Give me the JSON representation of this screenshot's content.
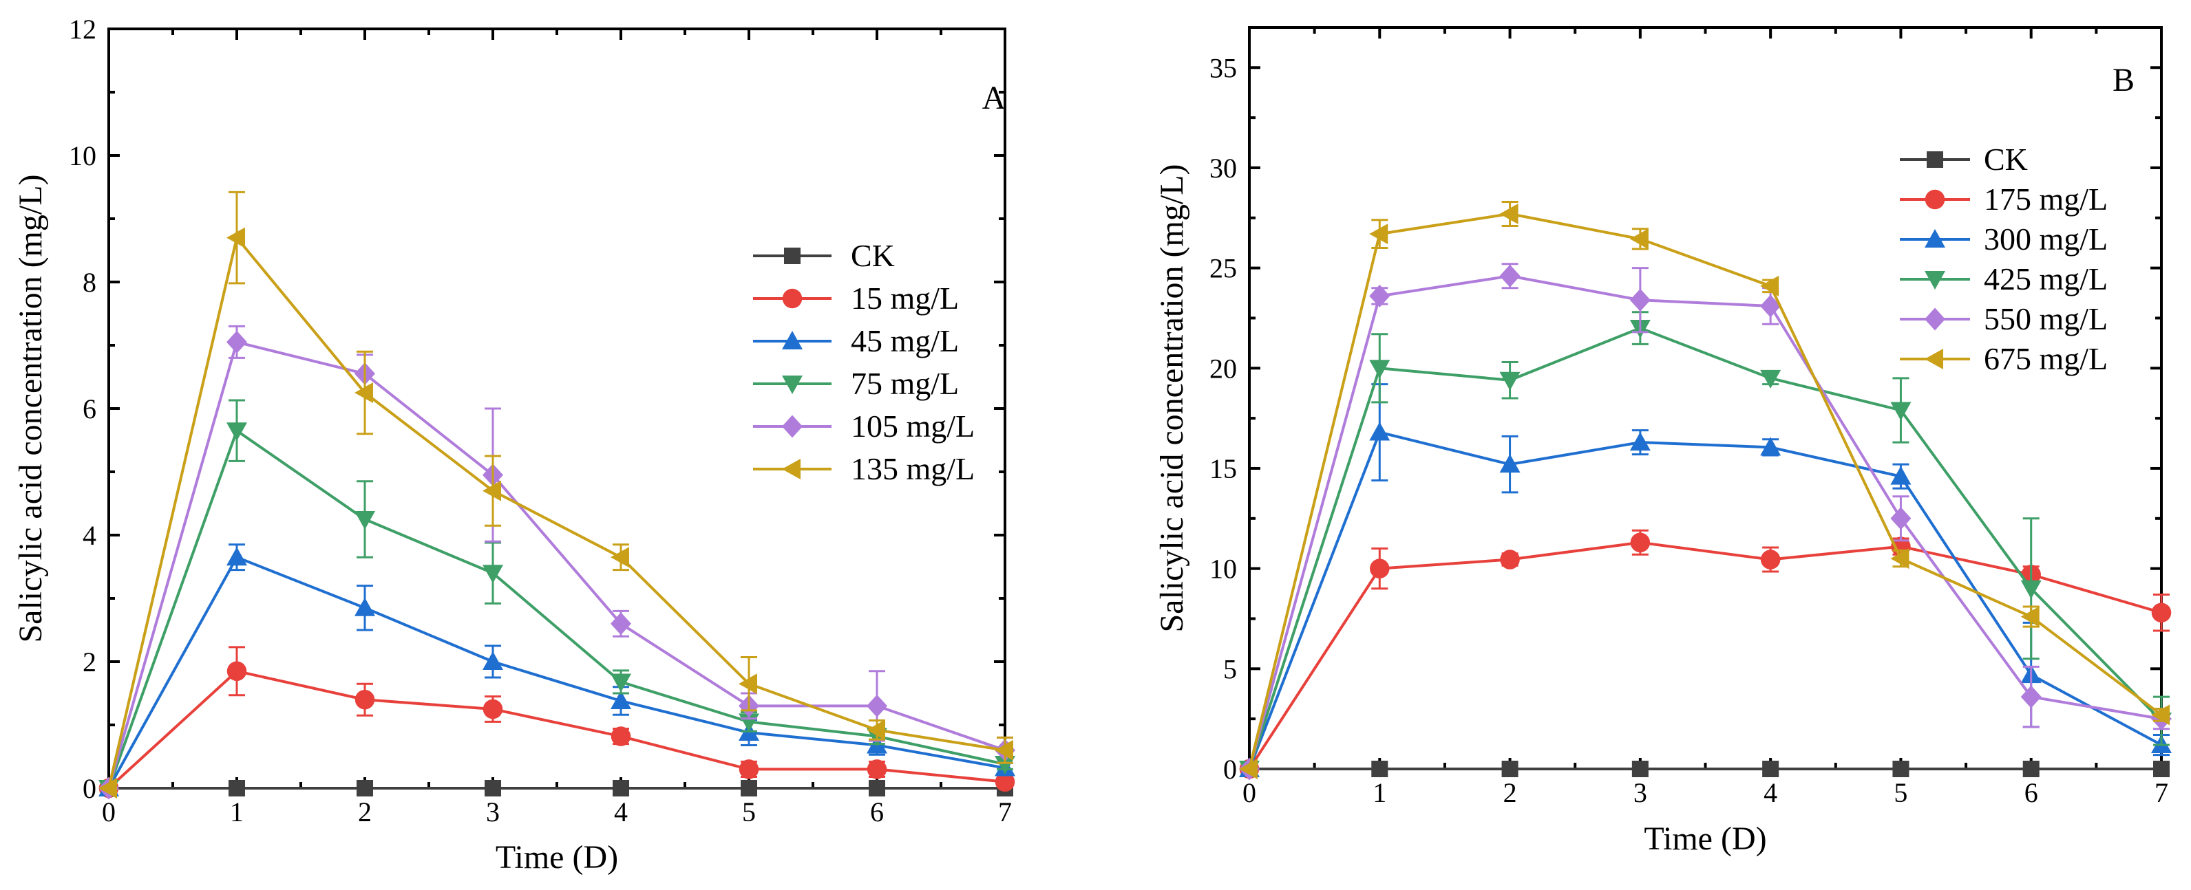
{
  "chart_data": [
    {
      "type": "line",
      "panel_label": "A",
      "xlabel": "Time (D)",
      "ylabel": "Salicylic acid concentration (mg/L)",
      "xlim": [
        0,
        7
      ],
      "ylim": [
        0,
        12
      ],
      "x_ticks": [
        0,
        1,
        2,
        3,
        4,
        5,
        6,
        7
      ],
      "y_ticks": [
        0,
        2,
        4,
        6,
        8,
        10,
        12
      ],
      "legend_position": "center-right",
      "x": [
        0,
        1,
        2,
        3,
        4,
        5,
        6,
        7
      ],
      "series": [
        {
          "name": "CK",
          "marker": "square",
          "color": "#404040",
          "values": [
            0,
            0,
            0,
            0,
            0,
            0,
            0,
            0
          ],
          "errors": [
            0,
            0,
            0,
            0,
            0,
            0,
            0,
            0
          ]
        },
        {
          "name": "15 mg/L",
          "marker": "circle",
          "color": "#E8403B",
          "values": [
            0,
            1.85,
            1.4,
            1.25,
            0.82,
            0.3,
            0.3,
            0.1
          ],
          "errors": [
            0,
            0.38,
            0.25,
            0.2,
            0.12,
            0.12,
            0.12,
            0.05
          ]
        },
        {
          "name": "45 mg/L",
          "marker": "triangle-up",
          "color": "#1F6FD1",
          "values": [
            0,
            3.65,
            2.85,
            2.0,
            1.38,
            0.88,
            0.68,
            0.32
          ],
          "errors": [
            0,
            0.2,
            0.35,
            0.25,
            0.22,
            0.2,
            0.15,
            0.08
          ]
        },
        {
          "name": "75 mg/L",
          "marker": "triangle-down",
          "color": "#3E9F67",
          "values": [
            0,
            5.65,
            4.25,
            3.4,
            1.68,
            1.05,
            0.82,
            0.38
          ],
          "errors": [
            0,
            0.48,
            0.6,
            0.48,
            0.18,
            0.15,
            0.12,
            0.08
          ]
        },
        {
          "name": "105 mg/L",
          "marker": "diamond",
          "color": "#B07CDB",
          "values": [
            0,
            7.05,
            6.55,
            4.95,
            2.6,
            1.3,
            1.3,
            0.6
          ],
          "errors": [
            0,
            0.25,
            0.3,
            1.05,
            0.2,
            0.2,
            0.55,
            0.2
          ]
        },
        {
          "name": "135 mg/L",
          "marker": "triangle-left",
          "color": "#C9A017",
          "values": [
            0,
            8.7,
            6.25,
            4.7,
            3.65,
            1.65,
            0.92,
            0.6
          ],
          "errors": [
            0,
            0.72,
            0.65,
            0.55,
            0.2,
            0.42,
            0.15,
            0.2
          ]
        }
      ]
    },
    {
      "type": "line",
      "panel_label": "B",
      "xlabel": "Time (D)",
      "ylabel": "Salicylic acid concentration (mg/L)",
      "xlim": [
        0,
        7
      ],
      "ylim": [
        0,
        37
      ],
      "x_ticks": [
        0,
        1,
        2,
        3,
        4,
        5,
        6,
        7
      ],
      "y_ticks": [
        0,
        5,
        10,
        15,
        20,
        25,
        30,
        35
      ],
      "legend_position": "top-right",
      "x": [
        0,
        1,
        2,
        3,
        4,
        5,
        6,
        7
      ],
      "series": [
        {
          "name": "CK",
          "marker": "square",
          "color": "#404040",
          "values": [
            0,
            0,
            0,
            0,
            0,
            0,
            0,
            0
          ],
          "errors": [
            0,
            0,
            0,
            0,
            0,
            0,
            0,
            0
          ]
        },
        {
          "name": "175 mg/L",
          "marker": "circle",
          "color": "#E8403B",
          "values": [
            0,
            10.0,
            10.45,
            11.3,
            10.45,
            11.1,
            9.7,
            7.8
          ],
          "errors": [
            0,
            1.0,
            0.3,
            0.6,
            0.6,
            0.4,
            0.4,
            0.9
          ]
        },
        {
          "name": "300 mg/L",
          "marker": "triangle-up",
          "color": "#1F6FD1",
          "values": [
            0,
            16.8,
            15.2,
            16.3,
            16.05,
            14.6,
            4.7,
            1.2
          ],
          "errors": [
            0,
            2.4,
            1.4,
            0.6,
            0.4,
            0.6,
            2.6,
            0.5
          ]
        },
        {
          "name": "425 mg/L",
          "marker": "triangle-down",
          "color": "#3E9F67",
          "values": [
            0,
            20.0,
            19.4,
            22.0,
            19.5,
            17.9,
            9.0,
            2.4
          ],
          "errors": [
            0,
            1.7,
            0.9,
            0.8,
            0.3,
            1.6,
            3.5,
            1.2
          ]
        },
        {
          "name": "550 mg/L",
          "marker": "diamond",
          "color": "#B07CDB",
          "values": [
            0,
            23.6,
            24.6,
            23.4,
            23.1,
            12.5,
            3.6,
            2.5
          ],
          "errors": [
            0,
            0.4,
            0.6,
            1.6,
            0.9,
            1.1,
            1.5,
            0.5
          ]
        },
        {
          "name": "675 mg/L",
          "marker": "triangle-left",
          "color": "#C9A017",
          "values": [
            0,
            26.7,
            27.7,
            26.45,
            24.1,
            10.5,
            7.6,
            2.7
          ],
          "errors": [
            0,
            0.7,
            0.6,
            0.5,
            0.3,
            0.4,
            0.5,
            0.3
          ]
        }
      ]
    }
  ]
}
